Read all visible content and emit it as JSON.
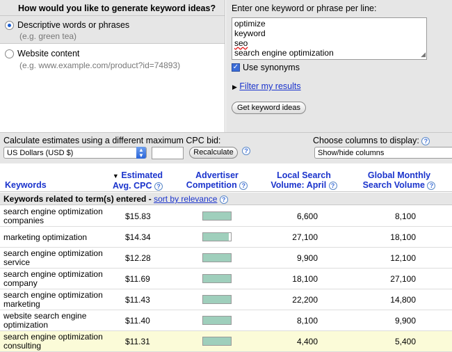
{
  "left_panel": {
    "heading": "How would you like to generate keyword ideas?",
    "option1_label": "Descriptive words or phrases",
    "option1_hint": "(e.g. green tea)",
    "option2_label": "Website content",
    "option2_hint": "(e.g. www.example.com/product?id=74893)"
  },
  "right_panel": {
    "label": "Enter one keyword or phrase per line:",
    "keywords": [
      "optimize",
      "keyword",
      "seo",
      "search engine optimization"
    ],
    "synonyms_label": "Use synonyms",
    "filter_link": "Filter my results",
    "get_ideas_button": "Get keyword ideas"
  },
  "estimates": {
    "label": "Calculate estimates using a different maximum CPC bid:",
    "currency": "US Dollars (USD $)",
    "bid_value": "",
    "recalculate_button": "Recalculate",
    "columns_label": "Choose columns to display:",
    "columns_select": "Show/hide columns"
  },
  "table": {
    "headers": {
      "keywords": "Keywords",
      "cpc_line1": "Estimated",
      "cpc_line2": "Avg. CPC",
      "competition_line1": "Advertiser",
      "competition_line2": "Competition",
      "local_line1": "Local Search",
      "local_line2": "Volume: April",
      "global_line1": "Global Monthly",
      "global_line2": "Search Volume"
    },
    "section_label": "Keywords related to term(s) entered",
    "sort_link": "sort by relevance",
    "rows": [
      {
        "keyword": "search engine optimization companies",
        "cpc": "$15.83",
        "competition": 1.0,
        "local": "6,600",
        "global": "8,100"
      },
      {
        "keyword": "marketing optimization",
        "cpc": "$14.34",
        "competition": 0.93,
        "local": "27,100",
        "global": "18,100"
      },
      {
        "keyword": "search engine optimization service",
        "cpc": "$12.28",
        "competition": 1.0,
        "local": "9,900",
        "global": "12,100"
      },
      {
        "keyword": "search engine optimization company",
        "cpc": "$11.69",
        "competition": 1.0,
        "local": "18,100",
        "global": "27,100"
      },
      {
        "keyword": "search engine optimization marketing",
        "cpc": "$11.43",
        "competition": 1.0,
        "local": "22,200",
        "global": "14,800"
      },
      {
        "keyword": "website search engine optimization",
        "cpc": "$11.40",
        "competition": 1.0,
        "local": "8,100",
        "global": "9,900"
      },
      {
        "keyword": "search engine optimization consulting",
        "cpc": "$11.31",
        "competition": 1.0,
        "local": "4,400",
        "global": "5,400"
      }
    ]
  }
}
